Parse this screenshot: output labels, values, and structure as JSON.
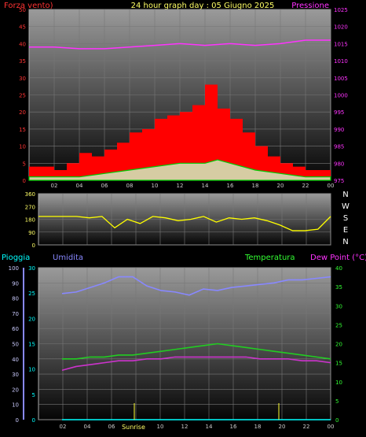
{
  "header": {
    "left": "Forza vento)",
    "center": "24 hour graph day : 05 Giugno 2025",
    "right": "Pressione"
  },
  "labels": {
    "pioggia": "Pioggia",
    "umidita": "Umidita",
    "temperatura": "Temperatura",
    "dew": "Dew Point (°C)",
    "sunrise": "Sunrise"
  },
  "colors": {
    "wind": "#ff0000",
    "gust": "#00cc00",
    "pressure": "#ff33ff",
    "direction": "#ffff00",
    "humidity": "#8888ff",
    "temperature": "#22cc22",
    "dew": "#cc33cc",
    "rain": "#00ffff",
    "rainAxis": "#8888ff"
  },
  "chart_data": [
    {
      "type": "bar",
      "title": "24 hour graph day : 05 Giugno 2025",
      "ylim_left": [
        0,
        50
      ],
      "yticks_left": [
        0,
        5,
        10,
        15,
        20,
        25,
        30,
        35,
        40,
        45,
        50
      ],
      "ylim_right": [
        975,
        1025
      ],
      "yticks_right": [
        975,
        980,
        985,
        990,
        995,
        1000,
        1005,
        1010,
        1015,
        1020,
        1025
      ],
      "x_ticks": [
        "02",
        "04",
        "06",
        "08",
        "10",
        "12",
        "14",
        "16",
        "18",
        "20",
        "22",
        "00"
      ],
      "series": [
        {
          "name": "Forza vento",
          "axis": "left",
          "type": "bar",
          "x": [
            0,
            1,
            2,
            3,
            4,
            5,
            6,
            7,
            8,
            9,
            10,
            11,
            12,
            13,
            14,
            15,
            16,
            17,
            18,
            19,
            20,
            21,
            22,
            23
          ],
          "values": [
            4,
            4,
            3,
            5,
            8,
            7,
            9,
            11,
            14,
            15,
            18,
            19,
            20,
            22,
            28,
            21,
            18,
            14,
            10,
            7,
            5,
            4,
            3,
            3
          ]
        },
        {
          "name": "Raffica",
          "axis": "left",
          "type": "area",
          "x": [
            0,
            2,
            4,
            6,
            8,
            10,
            12,
            14,
            15,
            16,
            18,
            20,
            22,
            24
          ],
          "values": [
            1,
            1,
            1,
            2,
            3,
            4,
            5,
            5,
            6,
            5,
            3,
            2,
            1,
            1
          ]
        },
        {
          "name": "Pressione",
          "axis": "right",
          "type": "line",
          "x": [
            0,
            2,
            4,
            6,
            8,
            10,
            12,
            14,
            16,
            18,
            20,
            22,
            24
          ],
          "values": [
            1014,
            1014,
            1013.5,
            1013.5,
            1014,
            1014.5,
            1015,
            1014.5,
            1015,
            1014.5,
            1015,
            1016,
            1016
          ]
        }
      ]
    },
    {
      "type": "line",
      "ylim": [
        0,
        360
      ],
      "yticks": [
        0,
        90,
        180,
        270,
        360
      ],
      "compass": [
        "N",
        "W",
        "S",
        "E",
        "N"
      ],
      "x_ticks": [
        "02",
        "04",
        "06",
        "08",
        "10",
        "12",
        "14",
        "16",
        "18",
        "20",
        "22",
        "00"
      ],
      "series": [
        {
          "name": "Direzione vento",
          "values": [
            200,
            200,
            200,
            200,
            190,
            200,
            120,
            180,
            150,
            200,
            190,
            170,
            180,
            200,
            160,
            190,
            180,
            190,
            170,
            140,
            100,
            100,
            110,
            200
          ]
        }
      ]
    },
    {
      "type": "line",
      "yticks_rain": [
        0,
        10,
        20,
        30,
        40,
        50,
        60,
        70,
        80,
        90,
        100
      ],
      "yticks_hum": [
        0,
        5,
        10,
        15,
        20,
        25,
        30
      ],
      "yticks_temp": [
        0,
        5,
        10,
        15,
        20,
        25,
        30,
        35,
        40
      ],
      "ylim": [
        0,
        100
      ],
      "x_ticks": [
        "02",
        "04",
        "06",
        "08",
        "10",
        "12",
        "14",
        "16",
        "18",
        "20",
        "22",
        "00"
      ],
      "series": [
        {
          "name": "Umidita",
          "values": [
            83,
            84,
            87,
            90,
            94,
            94,
            88,
            85,
            84,
            82,
            86,
            85,
            87,
            88,
            89,
            90,
            92,
            92,
            93,
            94
          ]
        },
        {
          "name": "Temperatura",
          "values": [
            16,
            16,
            16.5,
            16.5,
            17,
            17,
            17.5,
            18,
            18.5,
            19,
            19.5,
            20,
            19.5,
            19,
            18.5,
            18,
            17.5,
            17,
            16.5,
            16
          ]
        },
        {
          "name": "Dew Point",
          "values": [
            13,
            14,
            14.5,
            15,
            15.5,
            15.5,
            16,
            16,
            16.5,
            16.5,
            16.5,
            16.5,
            16.5,
            16.5,
            16,
            16,
            16,
            15.5,
            15.5,
            15
          ]
        },
        {
          "name": "Pioggia",
          "values": [
            0,
            0,
            0,
            0,
            0,
            0,
            0,
            0,
            0,
            0,
            0,
            0,
            0,
            0,
            0,
            0,
            0,
            0,
            0,
            0
          ]
        }
      ]
    }
  ]
}
